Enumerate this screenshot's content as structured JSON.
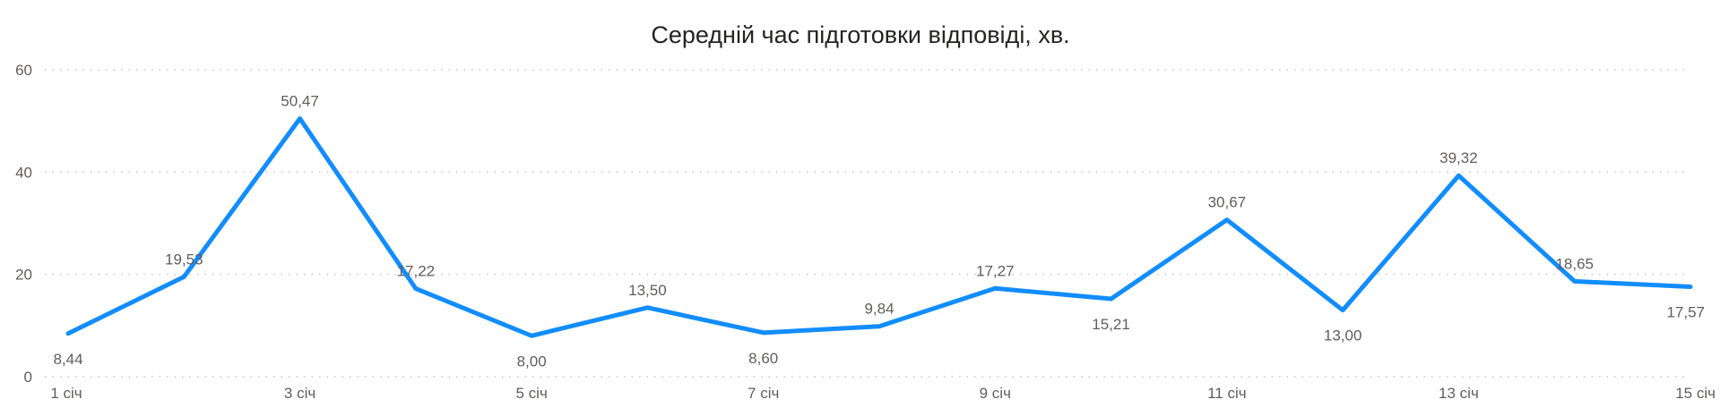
{
  "chart_data": {
    "type": "line",
    "title": "Середній час підготовки відповіді, хв.",
    "xlabel": "",
    "ylabel": "",
    "x": [
      "1 січ",
      "2 січ",
      "3 січ",
      "4 січ",
      "5 січ",
      "6 січ",
      "7 січ",
      "8 січ",
      "9 січ",
      "10 січ",
      "11 січ",
      "12 січ",
      "13 січ",
      "14 січ",
      "15 січ"
    ],
    "x_tick_labels": [
      "1 січ",
      "3 січ",
      "5 січ",
      "7 січ",
      "9 січ",
      "11 січ",
      "13 січ",
      "15 січ"
    ],
    "series": [
      {
        "values": [
          8.44,
          19.53,
          50.47,
          17.22,
          8.0,
          13.5,
          8.6,
          9.84,
          17.27,
          15.21,
          30.67,
          13.0,
          39.32,
          18.65,
          17.57
        ],
        "data_labels": [
          "8,44",
          "19,53",
          "50,47",
          "17,22",
          "8,00",
          "13,50",
          "8,60",
          "9,84",
          "17,27",
          "15,21",
          "30,67",
          "13,00",
          "39,32",
          "18,65",
          "17,57"
        ],
        "color": "#118DFF"
      }
    ],
    "ylim": [
      0,
      60
    ],
    "y_ticks": [
      "0",
      "20",
      "40",
      "60"
    ],
    "grid": true,
    "legend": "none"
  }
}
